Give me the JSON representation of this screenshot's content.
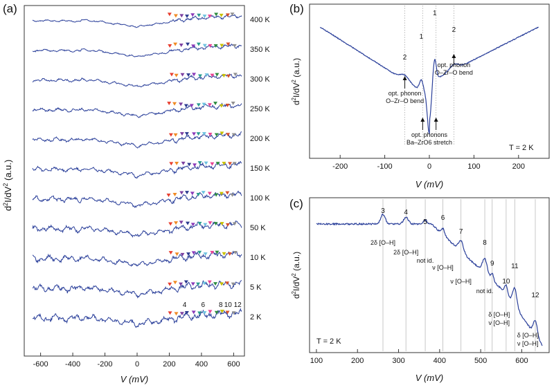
{
  "chart_data": [
    {
      "panel": "(a)",
      "type": "line",
      "title": "",
      "xlabel": "V (mV)",
      "ylabel": "d2I/dV2 (a.u.)",
      "xlim": [
        -650,
        650
      ],
      "xticks": [
        -600,
        -400,
        -200,
        0,
        200,
        400,
        600
      ],
      "series": [
        {
          "name": "400 K"
        },
        {
          "name": "350 K"
        },
        {
          "name": "300 K"
        },
        {
          "name": "250 K"
        },
        {
          "name": "200 K"
        },
        {
          "name": "150 K"
        },
        {
          "name": "100 K"
        },
        {
          "name": "50 K"
        },
        {
          "name": "10 K"
        },
        {
          "name": "5 K"
        },
        {
          "name": "2 K"
        }
      ],
      "marker_colors": [
        "#e83e2f",
        "#f08a24",
        "#7b3fa0",
        "#2b3a8f",
        "#8a3ab9",
        "#2a9d8f",
        "#6fc3e0",
        "#e84393",
        "#2e8b3e",
        "#c8c000",
        "#d94f2a",
        "#909090"
      ],
      "peak_labels": [
        {
          "text": "4",
          "x": 295
        },
        {
          "text": "6",
          "x": 410
        },
        {
          "text": "8",
          "x": 520
        },
        {
          "text": "10",
          "x": 565
        },
        {
          "text": "12",
          "x": 625
        }
      ]
    },
    {
      "panel": "(b)",
      "type": "line",
      "xlabel": "V (mV)",
      "ylabel": "d2I/dV2 (a.u.)",
      "xlim": [
        -250,
        250
      ],
      "xticks": [
        -200,
        -100,
        0,
        100,
        200
      ],
      "temperature": "T = 2 K",
      "peak_lines": [
        -55,
        -15,
        15,
        55
      ],
      "peak_labels": [
        {
          "text": "2",
          "x": -55
        },
        {
          "text": "1",
          "x": -18
        },
        {
          "text": "1",
          "x": 12
        },
        {
          "text": "2",
          "x": 55
        }
      ],
      "annotations": [
        {
          "line1": "opt. phonon",
          "line2": "O–Zr–O bend",
          "x": -55
        },
        {
          "line1": "opt. phonons",
          "line2": "Ba–ZrO6 stretch",
          "x": 0
        },
        {
          "line1": "opt. phonon",
          "line2": "O–Zr–O bend",
          "x": 55
        }
      ]
    },
    {
      "panel": "(c)",
      "type": "line",
      "xlabel": "V (mV)",
      "ylabel": "d2I/dV2 (a.u.)",
      "xlim": [
        90,
        660
      ],
      "xticks": [
        100,
        200,
        300,
        400,
        500,
        600
      ],
      "temperature": "T = 2 K",
      "peak_lines": [
        262,
        318,
        365,
        408,
        452,
        510,
        528,
        562,
        583,
        633
      ],
      "peak_numbers": [
        {
          "text": "3",
          "x": 262
        },
        {
          "text": "4",
          "x": 318
        },
        {
          "text": "5",
          "x": 365
        },
        {
          "text": "6",
          "x": 408
        },
        {
          "text": "7",
          "x": 452
        },
        {
          "text": "8",
          "x": 510
        },
        {
          "text": "9",
          "x": 528
        },
        {
          "text": "10",
          "x": 562
        },
        {
          "text": "11",
          "x": 583
        },
        {
          "text": "12",
          "x": 633
        }
      ],
      "assignments": [
        {
          "text": "2δ [O–H]",
          "x": 262
        },
        {
          "text": "2δ [O–H]",
          "x": 318
        },
        {
          "text": "not id.",
          "x": 365
        },
        {
          "text": "ν [O–H]",
          "x": 408
        },
        {
          "text": "ν [O–H]",
          "x": 452
        },
        {
          "text": "not id.",
          "x": 510
        },
        {
          "text": "δ [O–H]",
          "x": 545
        },
        {
          "text": "ν [O–H]",
          "x": 545
        },
        {
          "text": "δ [O–H]",
          "x": 615
        },
        {
          "text": "ν [O–H]",
          "x": 615
        }
      ]
    }
  ],
  "labels": {
    "panel_a": "(a)",
    "panel_b": "(b)",
    "panel_c": "(c)",
    "xlabel": "V (mV)",
    "ylabel_prefix": "d",
    "ylabel_sup1": "2",
    "ylabel_mid": "I/dV",
    "ylabel_sup2": "2",
    "ylabel_suffix": " (a.u.)"
  }
}
